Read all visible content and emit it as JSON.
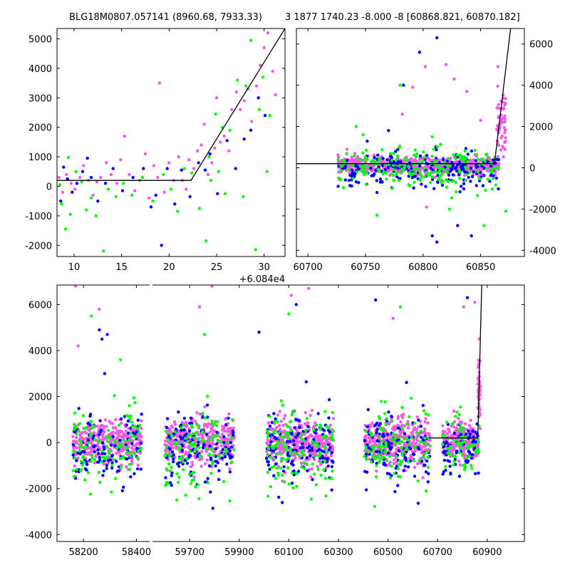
{
  "chart_data": [
    {
      "type": "scatter",
      "title": "BLG18M0807.057141 (8960.68, 7933.33)",
      "offset_label": "+6.084e4",
      "xlim": [
        8.2,
        32.2
      ],
      "ylim": [
        -2380,
        5350
      ],
      "xticks": [
        10,
        15,
        20,
        25,
        30
      ],
      "yticks": [
        -2000,
        -1000,
        0,
        1000,
        2000,
        3000,
        4000,
        5000
      ],
      "colors": {
        "green": "#00ff00",
        "blue": "#0000ff",
        "magenta": "#ee5be5"
      },
      "model_line": [
        [
          8.2,
          200
        ],
        [
          22.3,
          200
        ],
        [
          32.2,
          5350
        ]
      ],
      "series": [
        {
          "color": "green",
          "points": [
            [
              8.7,
              -600
            ],
            [
              9.1,
              -1450
            ],
            [
              9.6,
              -950
            ],
            [
              10.2,
              500
            ],
            [
              10.8,
              150
            ],
            [
              11.3,
              -800
            ],
            [
              11.8,
              -400
            ],
            [
              12.3,
              -1000
            ],
            [
              13.1,
              -2200
            ],
            [
              13.6,
              -100
            ],
            [
              14.4,
              -350
            ],
            [
              15.2,
              100
            ],
            [
              16.1,
              -300
            ],
            [
              17.2,
              300
            ],
            [
              18.3,
              -500
            ],
            [
              19.4,
              400
            ],
            [
              20.2,
              -100
            ],
            [
              20.9,
              -850
            ],
            [
              21.6,
              600
            ],
            [
              22.4,
              450
            ],
            [
              23.2,
              -750
            ],
            [
              23.9,
              -1850
            ],
            [
              24.4,
              200
            ],
            [
              24.9,
              2450
            ],
            [
              25.2,
              500
            ],
            [
              25.9,
              -250
            ],
            [
              26.4,
              1900
            ],
            [
              27.2,
              3600
            ],
            [
              27.8,
              -350
            ],
            [
              28.6,
              4950
            ],
            [
              29.1,
              -2150
            ],
            [
              29.5,
              2600
            ],
            [
              29.9,
              3700
            ],
            [
              30.3,
              500
            ],
            [
              30.6,
              2400
            ],
            [
              8.5,
              50
            ],
            [
              9.4,
              980
            ],
            [
              24.2,
              1000
            ],
            [
              25.6,
              2000
            ],
            [
              28.1,
              3400
            ]
          ]
        },
        {
          "color": "blue",
          "points": [
            [
              8.6,
              -500
            ],
            [
              8.9,
              650
            ],
            [
              9.3,
              250
            ],
            [
              9.8,
              -200
            ],
            [
              10.3,
              100
            ],
            [
              10.9,
              500
            ],
            [
              11.4,
              950
            ],
            [
              11.8,
              300
            ],
            [
              12.5,
              -500
            ],
            [
              13.3,
              100
            ],
            [
              14.1,
              600
            ],
            [
              15.1,
              -150
            ],
            [
              16.2,
              300
            ],
            [
              17.3,
              600
            ],
            [
              18.1,
              -700
            ],
            [
              18.6,
              -300
            ],
            [
              19.2,
              -2000
            ],
            [
              19.8,
              600
            ],
            [
              20.6,
              -600
            ],
            [
              21.3,
              550
            ],
            [
              22.2,
              -350
            ],
            [
              23.1,
              800
            ],
            [
              23.8,
              550
            ],
            [
              24.3,
              1100
            ],
            [
              25.1,
              -250
            ],
            [
              26.1,
              1550
            ],
            [
              27.0,
              600
            ],
            [
              27.9,
              1600
            ],
            [
              28.6,
              1900
            ],
            [
              29.4,
              3000
            ],
            [
              30.1,
              2400
            ]
          ]
        },
        {
          "color": "magenta",
          "points": [
            [
              8.4,
              300
            ],
            [
              8.8,
              -200
            ],
            [
              9.2,
              400
            ],
            [
              9.7,
              100
            ],
            [
              10.1,
              -100
            ],
            [
              10.6,
              300
            ],
            [
              11.0,
              700
            ],
            [
              11.5,
              200
            ],
            [
              12.0,
              -300
            ],
            [
              12.4,
              150
            ],
            [
              12.8,
              300
            ],
            [
              13.4,
              800
            ],
            [
              13.9,
              400
            ],
            [
              14.5,
              100
            ],
            [
              14.9,
              900
            ],
            [
              15.3,
              1700
            ],
            [
              15.8,
              400
            ],
            [
              16.4,
              -150
            ],
            [
              16.9,
              200
            ],
            [
              17.5,
              1100
            ],
            [
              17.9,
              -400
            ],
            [
              18.4,
              700
            ],
            [
              18.8,
              300
            ],
            [
              19.0,
              3500
            ],
            [
              19.5,
              -200
            ],
            [
              20.0,
              800
            ],
            [
              20.5,
              200
            ],
            [
              21.0,
              1000
            ],
            [
              21.4,
              200
            ],
            [
              21.8,
              -100
            ],
            [
              22.1,
              900
            ],
            [
              22.6,
              600
            ],
            [
              23.0,
              1200
            ],
            [
              23.4,
              1400
            ],
            [
              23.7,
              2100
            ],
            [
              24.1,
              400
            ],
            [
              24.5,
              800
            ],
            [
              24.8,
              1300
            ],
            [
              25.0,
              3000
            ],
            [
              25.4,
              1500
            ],
            [
              25.8,
              1700
            ],
            [
              26.3,
              1200
            ],
            [
              26.6,
              2600
            ],
            [
              27.1,
              3200
            ],
            [
              27.5,
              2600
            ],
            [
              27.9,
              2900
            ],
            [
              28.3,
              3300
            ],
            [
              28.7,
              2200
            ],
            [
              29.2,
              3400
            ],
            [
              29.6,
              4100
            ],
            [
              30.0,
              4700
            ],
            [
              30.4,
              5200
            ],
            [
              30.9,
              3900
            ],
            [
              31.2,
              3100
            ]
          ]
        }
      ]
    },
    {
      "type": "scatter",
      "title": "3 1877 1740.23 -8.000 -8 [60868.821, 60870.182]",
      "xlim": [
        60690,
        60888
      ],
      "ylim": [
        -4300,
        6750
      ],
      "xticks": [
        60700,
        60750,
        60800,
        60850
      ],
      "yticks": [
        -4000,
        -2000,
        0,
        2000,
        4000,
        6000
      ],
      "model_line": [
        [
          60690,
          200
        ],
        [
          60862,
          200
        ],
        [
          60876,
          6750
        ]
      ],
      "clusters": [
        {
          "x_range": [
            60726,
            60866
          ],
          "y_center": 100,
          "y_spread": 350,
          "count": 650,
          "color": "magenta"
        },
        {
          "x_range": [
            60726,
            60866
          ],
          "y_center": -100,
          "y_spread": 800,
          "count": 220,
          "color": "blue"
        },
        {
          "x_range": [
            60726,
            60866
          ],
          "y_center": -50,
          "y_spread": 900,
          "count": 200,
          "color": "green"
        },
        {
          "x_range": [
            60864,
            60872
          ],
          "y_center": 2200,
          "y_spread": 1500,
          "count": 60,
          "color": "magenta"
        }
      ],
      "outliers": [
        {
          "color": "blue",
          "points": [
            [
              60812,
              6300
            ],
            [
              60797,
              5600
            ],
            [
              60783,
              4000
            ],
            [
              60808,
              -3300
            ],
            [
              60812,
              -3600
            ],
            [
              60830,
              -2800
            ],
            [
              60770,
              1800
            ],
            [
              60760,
              -1200
            ],
            [
              60842,
              -3300
            ]
          ]
        },
        {
          "color": "green",
          "points": [
            [
              60780,
              4000
            ],
            [
              60748,
              1600
            ],
            [
              60808,
              1500
            ],
            [
              60760,
              -2300
            ],
            [
              60853,
              -2800
            ],
            [
              60872,
              -2100
            ],
            [
              60742,
              2000
            ],
            [
              60823,
              -2000
            ]
          ]
        },
        {
          "color": "magenta",
          "points": [
            [
              60820,
              5000
            ],
            [
              60802,
              4900
            ],
            [
              60827,
              4300
            ],
            [
              60791,
              3900
            ],
            [
              60865,
              4900
            ],
            [
              60850,
              2300
            ],
            [
              60734,
              900
            ],
            [
              60782,
              2600
            ],
            [
              60803,
              -1900
            ],
            [
              60838,
              3700
            ]
          ]
        }
      ]
    },
    {
      "type": "scatter",
      "xlim": [
        58100,
        61050
      ],
      "ylim": [
        -4300,
        6850
      ],
      "xticks": [
        58200,
        58400,
        59700,
        59900,
        60100,
        60300,
        60500,
        60700,
        60900
      ],
      "yticks": [
        -4000,
        -2000,
        0,
        2000,
        4000,
        6000
      ],
      "break": {
        "left_xlim": [
          58100,
          58450
        ],
        "right_xlim": [
          59550,
          61050
        ]
      },
      "model_line": [
        [
          60665,
          200
        ],
        [
          60862,
          200
        ],
        [
          60878,
          6850
        ]
      ],
      "clusters": [
        {
          "x_range": [
            58160,
            58420
          ],
          "y_center": 0,
          "y_spread": 800,
          "count": 380,
          "color": "magenta"
        },
        {
          "x_range": [
            58160,
            58420
          ],
          "y_center": -300,
          "y_spread": 1400,
          "count": 110,
          "color": "blue"
        },
        {
          "x_range": [
            58160,
            58420
          ],
          "y_center": -200,
          "y_spread": 1500,
          "count": 110,
          "color": "green"
        },
        {
          "x_range": [
            59600,
            59880
          ],
          "y_center": 0,
          "y_spread": 900,
          "count": 380,
          "color": "magenta"
        },
        {
          "x_range": [
            59600,
            59880
          ],
          "y_center": -300,
          "y_spread": 1400,
          "count": 130,
          "color": "blue"
        },
        {
          "x_range": [
            59600,
            59880
          ],
          "y_center": -200,
          "y_spread": 1600,
          "count": 110,
          "color": "green"
        },
        {
          "x_range": [
            60010,
            60280
          ],
          "y_center": 0,
          "y_spread": 900,
          "count": 380,
          "color": "magenta"
        },
        {
          "x_range": [
            60010,
            60280
          ],
          "y_center": -300,
          "y_spread": 1500,
          "count": 130,
          "color": "blue"
        },
        {
          "x_range": [
            60010,
            60280
          ],
          "y_center": -300,
          "y_spread": 1700,
          "count": 130,
          "color": "green"
        },
        {
          "x_range": [
            60405,
            60670
          ],
          "y_center": 0,
          "y_spread": 900,
          "count": 380,
          "color": "magenta"
        },
        {
          "x_range": [
            60405,
            60670
          ],
          "y_center": -300,
          "y_spread": 1400,
          "count": 130,
          "color": "blue"
        },
        {
          "x_range": [
            60405,
            60670
          ],
          "y_center": -200,
          "y_spread": 1500,
          "count": 110,
          "color": "green"
        },
        {
          "x_range": [
            60720,
            60868
          ],
          "y_center": 100,
          "y_spread": 700,
          "count": 230,
          "color": "magenta"
        },
        {
          "x_range": [
            60720,
            60868
          ],
          "y_center": -300,
          "y_spread": 1300,
          "count": 70,
          "color": "blue"
        },
        {
          "x_range": [
            60720,
            60868
          ],
          "y_center": -200,
          "y_spread": 1400,
          "count": 70,
          "color": "green"
        },
        {
          "x_range": [
            60862,
            60872
          ],
          "y_center": 2500,
          "y_spread": 1500,
          "count": 45,
          "color": "magenta"
        }
      ],
      "outliers": [
        {
          "color": "blue",
          "points": [
            [
              58260,
              4900
            ],
            [
              58290,
              4700
            ],
            [
              58270,
              4500
            ],
            [
              58280,
              3000
            ],
            [
              60450,
              6200
            ],
            [
              60820,
              6300
            ],
            [
              60130,
              6000
            ],
            [
              59980,
              4800
            ]
          ]
        },
        {
          "color": "green",
          "points": [
            [
              58230,
              5500
            ],
            [
              59760,
              4700
            ],
            [
              60550,
              5900
            ],
            [
              60100,
              5600
            ],
            [
              58340,
              3600
            ]
          ]
        },
        {
          "color": "magenta",
          "points": [
            [
              58170,
              6800
            ],
            [
              58180,
              4200
            ],
            [
              58260,
              5800
            ],
            [
              59790,
              6800
            ],
            [
              59740,
              5900
            ],
            [
              60110,
              6400
            ],
            [
              60180,
              6700
            ],
            [
              60520,
              5400
            ],
            [
              60805,
              5900
            ],
            [
              60850,
              6100
            ]
          ]
        }
      ]
    }
  ]
}
